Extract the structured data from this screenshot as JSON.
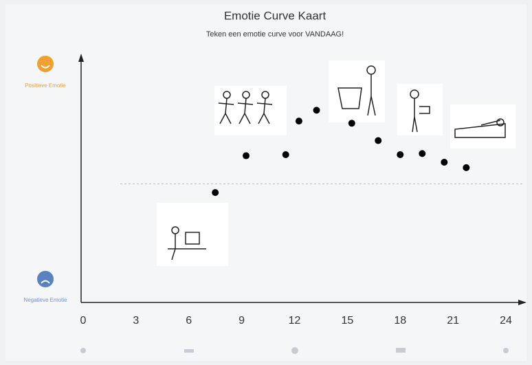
{
  "chart_data": {
    "type": "scatter",
    "title": "Emotie Curve Kaart",
    "subtitle": "Teken een emotie curve voor VANDAAG!",
    "x": [
      7.5,
      9.25,
      11.5,
      12.25,
      13.25,
      15.25,
      16.75,
      18,
      19.25,
      20.5,
      21.75
    ],
    "values": [
      46,
      63,
      63.5,
      79,
      84,
      78,
      70,
      63.5,
      64,
      60,
      57.5
    ],
    "color": "#000000",
    "xlim": [
      0,
      24
    ],
    "xticks": [
      0,
      3,
      6,
      9,
      12,
      15,
      18,
      21,
      24
    ],
    "ylim": [
      0,
      100
    ],
    "yticks": [
      {
        "value": 100,
        "label": "Positieve Emotie"
      },
      {
        "value": 0,
        "label": "Negatieve Emotie"
      }
    ]
  }
}
